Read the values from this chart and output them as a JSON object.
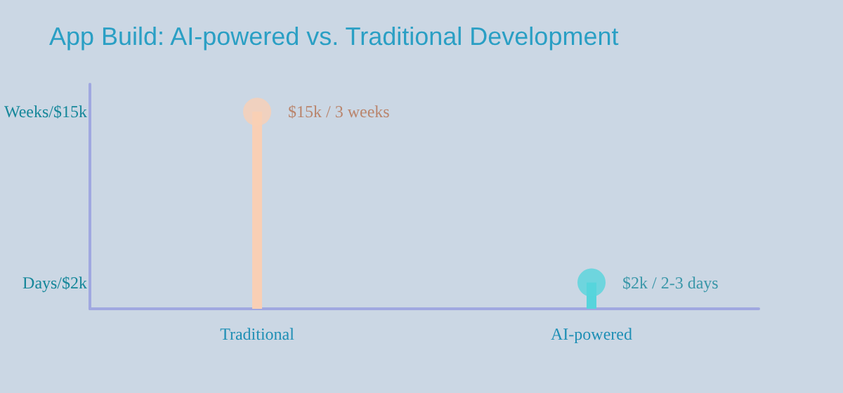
{
  "chart_data": {
    "type": "lollipop",
    "title": "App Build: AI-powered vs. Traditional Development",
    "categories": [
      "Traditional",
      "AI-powered"
    ],
    "values": [
      15,
      2
    ],
    "colors": [
      "#f9cfb5",
      "#56d4dc"
    ],
    "value_labels": [
      "$15k / 3 weeks",
      "$2k / 2-3 days"
    ],
    "ylim": [
      0,
      17.1
    ],
    "yticks": [
      {
        "value": 2,
        "label": "Days/$2k"
      },
      {
        "value": 15,
        "label": "Weeks/$15k"
      }
    ],
    "grid": false,
    "marker": "circle"
  }
}
